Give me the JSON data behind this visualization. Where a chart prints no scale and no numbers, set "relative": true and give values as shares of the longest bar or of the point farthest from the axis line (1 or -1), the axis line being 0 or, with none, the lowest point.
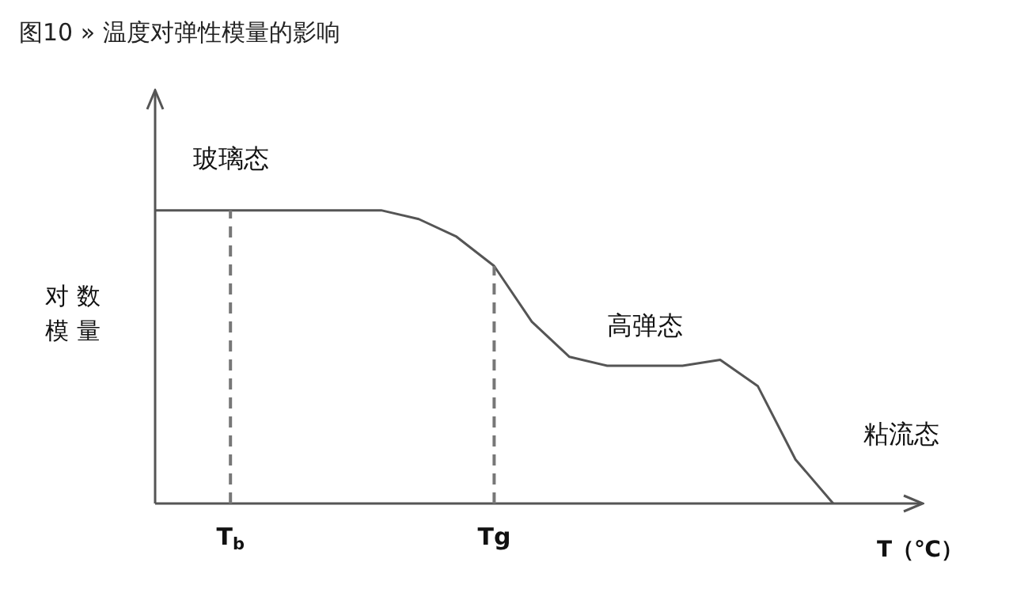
{
  "chart_data": {
    "type": "line",
    "relative": true,
    "title": "图10 » 温度对弹性模量的影响",
    "xlabel": "T（℃）",
    "ylabel": "对数模量",
    "categories": [
      null,
      null,
      "T$_{b}$",
      null,
      null,
      null,
      null,
      null,
      null,
      "Tg",
      null,
      null,
      null,
      null,
      null,
      null,
      null,
      null,
      null,
      null,
      null
    ],
    "series": [
      {
        "color": "#555555",
        "values": [
          1,
          1,
          1,
          1,
          1,
          1,
          1,
          0.97,
          0.91,
          0.81,
          0.62,
          0.5,
          0.47,
          0.47,
          0.47,
          0.49,
          0.4,
          0.15,
          0,
          null,
          null
        ]
      }
    ],
    "ref_lines": [
      {
        "axis": "x",
        "value": "T$_{b}$",
        "color": "#777777",
        "line_style": "dashed"
      },
      {
        "axis": "x",
        "value": "Tg",
        "color": "#777777",
        "line_style": "dashed"
      }
    ],
    "annotations": [
      "玻璃态",
      "高弹态",
      "粘流态"
    ],
    "grid": false,
    "legend": false,
    "marker": "none",
    "line_style": "solid"
  }
}
